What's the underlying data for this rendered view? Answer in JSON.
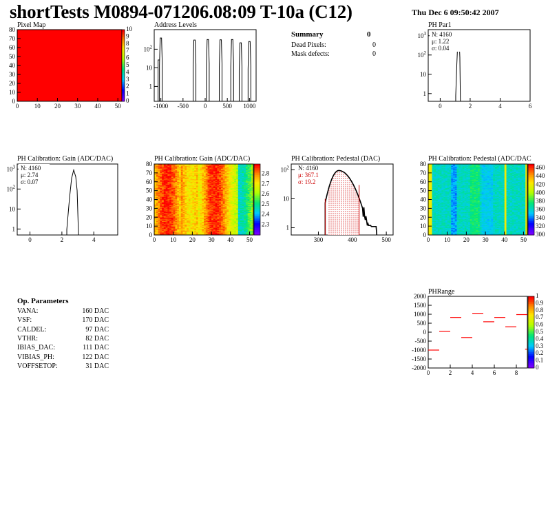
{
  "header": {
    "title": "shortTests M0894-071206.08:09 T-10a (C12)",
    "date": "Thu Dec  6 09:50:42 2007"
  },
  "summary": {
    "title": "Summary",
    "total": "0",
    "rows": [
      {
        "label": "Dead Pixels:",
        "value": "0"
      },
      {
        "label": "Mask defects:",
        "value": "0"
      }
    ]
  },
  "op_parameters": {
    "title": "Op. Parameters",
    "rows": [
      {
        "label": "VANA:",
        "value": "160 DAC"
      },
      {
        "label": "VSF:",
        "value": "170 DAC"
      },
      {
        "label": "CALDEL:",
        "value": "97 DAC"
      },
      {
        "label": "VTHR:",
        "value": "82 DAC"
      },
      {
        "label": "IBIAS_DAC:",
        "value": "111 DAC"
      },
      {
        "label": "VIBIAS_PH:",
        "value": "122 DAC"
      },
      {
        "label": "VOFFSETOP:",
        "value": "31 DAC"
      }
    ]
  },
  "colors": {
    "red": "#ff0000",
    "hist_line": "#000000",
    "stat_red": "#cc0000"
  },
  "chart_data": [
    {
      "id": "pixel-map",
      "type": "heatmap",
      "title": "Pixel Map",
      "xlim": [
        0,
        52
      ],
      "ylim": [
        0,
        80
      ],
      "xticks": [
        "0",
        "10",
        "20",
        "30",
        "40",
        "50"
      ],
      "yticks": [
        "0",
        "10",
        "20",
        "30",
        "40",
        "50",
        "60",
        "70",
        "80"
      ],
      "z_range": [
        0,
        10
      ],
      "zticks": [
        "0",
        "1",
        "2",
        "3",
        "4",
        "5",
        "6",
        "7",
        "8",
        "9",
        "10"
      ],
      "uniform_value": 10
    },
    {
      "id": "address-levels",
      "type": "line",
      "title": "Address Levels",
      "log_y": true,
      "xlim": [
        -1150,
        1150
      ],
      "xticks": [
        "-1000",
        "-500",
        "0",
        "500",
        "1000"
      ],
      "yticks": [
        "1",
        "10",
        "10^2"
      ],
      "peaks": [
        {
          "x": -1000,
          "y": 400
        },
        {
          "x": -240,
          "y": 310
        },
        {
          "x": 60,
          "y": 330
        },
        {
          "x": 350,
          "y": 320
        },
        {
          "x": 610,
          "y": 330
        },
        {
          "x": 800,
          "y": 220
        },
        {
          "x": 1000,
          "y": 260
        }
      ]
    },
    {
      "id": "ph-par1",
      "type": "line",
      "title": "PH Par1",
      "log_y": true,
      "xlim": [
        -0.8,
        6
      ],
      "xticks": [
        "0",
        "2",
        "4",
        "6"
      ],
      "yticks": [
        "1",
        "10",
        "10^2",
        "10^3"
      ],
      "stats": {
        "n": "N: 4160",
        "mean": "μ: 1.22",
        "sigma": "σ: 0.04"
      },
      "peak": {
        "x": 1.22,
        "y": 900
      }
    },
    {
      "id": "gain-1d",
      "type": "line",
      "title": "PH Calibration: Gain (ADC/DAC)",
      "log_y": true,
      "xlim": [
        -0.8,
        5.5
      ],
      "xticks": [
        "0",
        "2",
        "4"
      ],
      "yticks": [
        "1",
        "10",
        "10^2",
        "10^3"
      ],
      "stats": {
        "n": "N: 4160",
        "mean": "μ: 2.74",
        "sigma": "σ: 0.07"
      },
      "peak": {
        "x": 2.74,
        "y": 900
      }
    },
    {
      "id": "gain-map",
      "type": "heatmap",
      "title": "PH Calibration: Gain (ADC/DAC)",
      "xlim": [
        0,
        52
      ],
      "ylim": [
        0,
        80
      ],
      "xticks": [
        "0",
        "10",
        "20",
        "30",
        "40",
        "50"
      ],
      "yticks": [
        "0",
        "10",
        "20",
        "30",
        "40",
        "50",
        "60",
        "70",
        "80"
      ],
      "z_range": [
        2.2,
        2.9
      ],
      "zticks": [
        "2.3",
        "2.4",
        "2.5",
        "2.6",
        "2.7",
        "2.8"
      ]
    },
    {
      "id": "pedestal-1d",
      "type": "line",
      "title": "PH Calibration: Pedestal (DAC)",
      "log_y": true,
      "xlim": [
        220,
        520
      ],
      "xticks": [
        "300",
        "400",
        "500"
      ],
      "yticks": [
        "1",
        "10",
        "10^2"
      ],
      "stats": {
        "n": "N: 4160",
        "mean": "μ: 367.1",
        "sigma": "σ: 19.2"
      },
      "cuts": [
        320,
        420
      ],
      "peak": {
        "x": 360,
        "y": 95
      }
    },
    {
      "id": "pedestal-map",
      "type": "heatmap",
      "title": "PH Calibration: Pedestal (ADC/DAC)",
      "xlim": [
        0,
        52
      ],
      "ylim": [
        0,
        80
      ],
      "xticks": [
        "0",
        "10",
        "20",
        "30",
        "40",
        "50"
      ],
      "yticks": [
        "0",
        "10",
        "20",
        "30",
        "40",
        "50",
        "60",
        "70",
        "80"
      ],
      "z_range": [
        300,
        470
      ],
      "zticks": [
        "300",
        "320",
        "340",
        "360",
        "380",
        "400",
        "420",
        "440",
        "460"
      ]
    },
    {
      "id": "ph-range",
      "type": "scatter",
      "title": "PHRange",
      "xlim": [
        0,
        9
      ],
      "ylim": [
        -2000,
        2000
      ],
      "xticks": [
        "0",
        "2",
        "4",
        "6",
        "8"
      ],
      "yticks": [
        "-2000",
        "-1500",
        "-1000",
        "-500",
        "0",
        "500",
        "1000",
        "1500",
        "2000"
      ],
      "z_range": [
        0,
        1
      ],
      "zticks": [
        "0",
        "0.1",
        "0.2",
        "0.3",
        "0.4",
        "0.5",
        "0.6",
        "0.7",
        "0.8",
        "0.9",
        "1"
      ],
      "points": [
        {
          "x": 0,
          "y": -1000
        },
        {
          "x": 1,
          "y": 50
        },
        {
          "x": 2,
          "y": 820
        },
        {
          "x": 3,
          "y": -300
        },
        {
          "x": 4,
          "y": 1050
        },
        {
          "x": 5,
          "y": 580
        },
        {
          "x": 6,
          "y": 820
        },
        {
          "x": 7,
          "y": 300
        },
        {
          "x": 8,
          "y": 980
        },
        {
          "x": 8.8,
          "y": -950
        }
      ]
    }
  ]
}
